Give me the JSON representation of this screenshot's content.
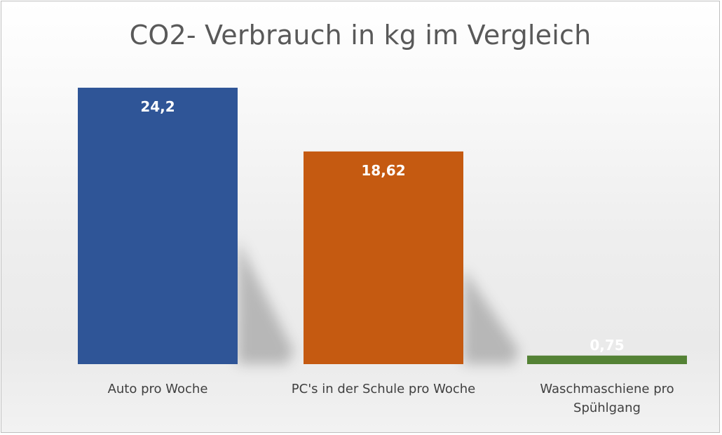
{
  "chart_data": {
    "type": "bar",
    "title": "CO2- Verbrauch in kg im Vergleich",
    "categories": [
      [
        "Auto pro Woche"
      ],
      [
        "PC's in der Schule pro Woche"
      ],
      [
        "Waschmaschiene pro",
        "Spühlgang"
      ]
    ],
    "values": [
      24.2,
      18.62,
      0.75
    ],
    "data_labels": [
      "24,2",
      "18,62",
      "0,75"
    ],
    "colors": [
      "#2f5597",
      "#c55a11",
      "#548235"
    ],
    "ylim": [
      0,
      25
    ],
    "grid": false,
    "legend": "none"
  }
}
